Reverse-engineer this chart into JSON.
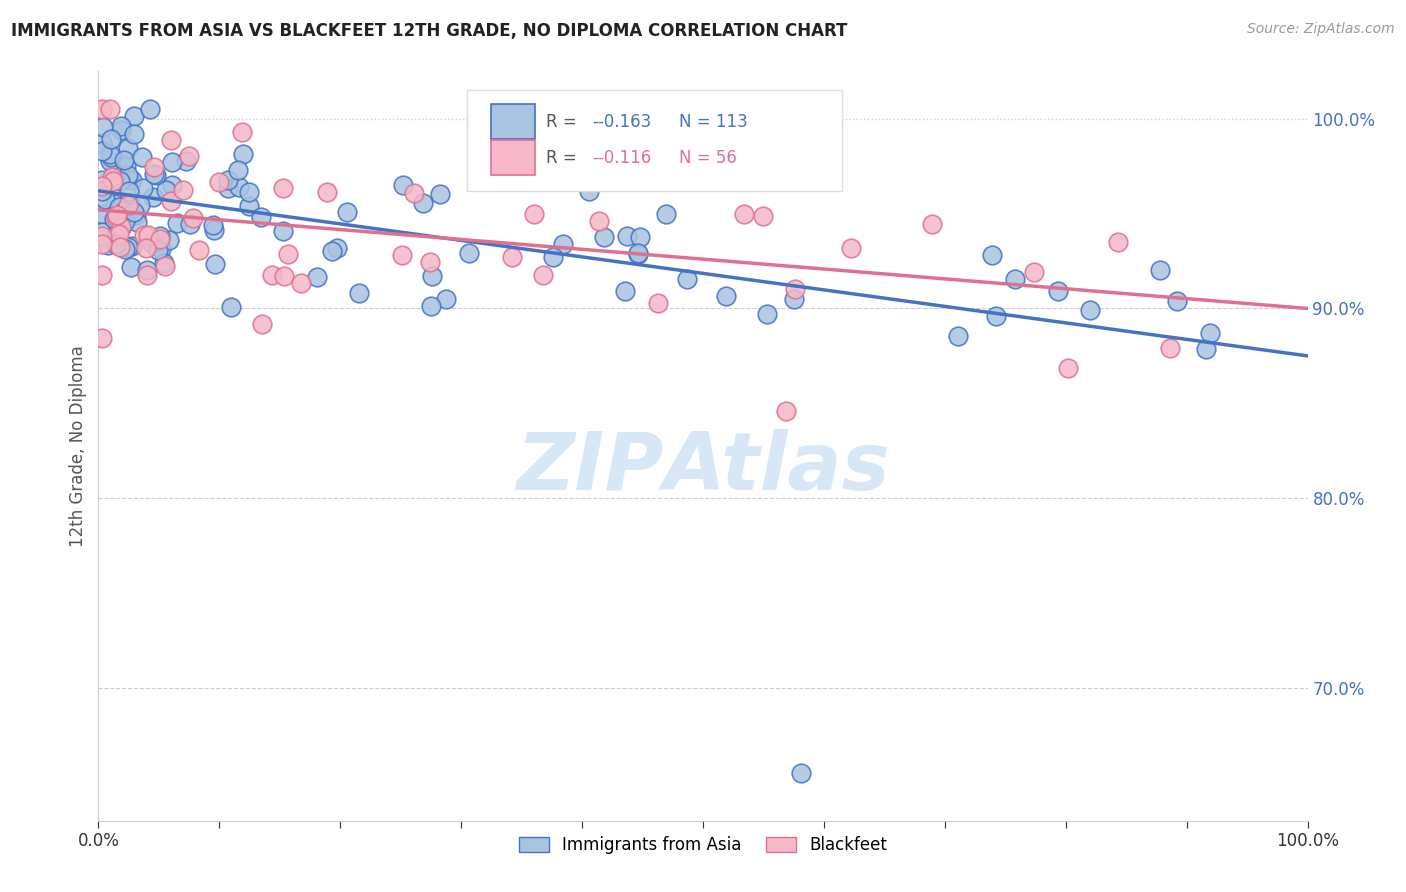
{
  "title": "IMMIGRANTS FROM ASIA VS BLACKFEET 12TH GRADE, NO DIPLOMA CORRELATION CHART",
  "source": "Source: ZipAtlas.com",
  "ylabel": "12th Grade, No Diploma",
  "legend_label_blue": "Immigrants from Asia",
  "legend_label_pink": "Blackfeet",
  "legend_r_blue": "-0.163",
  "legend_n_blue": "113",
  "legend_r_pink": "-0.116",
  "legend_n_pink": "56",
  "xlim": [
    0.0,
    1.0
  ],
  "ylim": [
    0.63,
    1.025
  ],
  "yticks_right": [
    0.7,
    0.8,
    0.9,
    1.0
  ],
  "color_blue_fill": "#a8c4e0",
  "color_blue_edge": "#4472c4",
  "color_pink_fill": "#f4b8c8",
  "color_pink_edge": "#e07090",
  "color_blue_line": "#4472c4",
  "color_pink_line": "#e07090",
  "color_right_axis": "#4472c4",
  "bg_color": "#ffffff",
  "grid_dotted_color": "#cccccc",
  "grid_dashed_color": "#cccccc",
  "trend_blue_x0": 0.0,
  "trend_blue_y0": 0.962,
  "trend_blue_x1": 1.0,
  "trend_blue_y1": 0.875,
  "trend_pink_x0": 0.0,
  "trend_pink_y0": 0.952,
  "trend_pink_x1": 1.0,
  "trend_pink_y1": 0.9
}
